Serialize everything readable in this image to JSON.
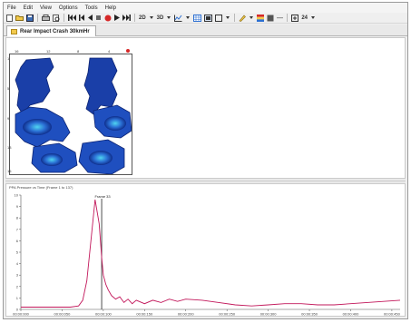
{
  "menu": {
    "items": [
      "File",
      "Edit",
      "View",
      "Options",
      "Tools",
      "Help"
    ]
  },
  "toolbar": {
    "speed_label": "2D",
    "view_label": "3D",
    "zoom_label": "24"
  },
  "tab": {
    "label": "Rear Impact Crash 30kmHr"
  },
  "heatmap": {
    "x_ticks": [
      "16",
      "12",
      "8",
      "4"
    ],
    "y_ticks": [
      "1",
      "5",
      "9",
      "13",
      "16"
    ]
  },
  "plot": {
    "title": "PPA Pressure vs Time (Frame 1 to 137)",
    "annotation": "Frame 33",
    "y_ticks": [
      "10",
      "9",
      "8",
      "7",
      "6",
      "5",
      "4",
      "3",
      "2",
      "1",
      "0"
    ],
    "x_ticks": [
      "00:00:000",
      "00:00:050",
      "00:00:100",
      "00:00:150",
      "00:00:200",
      "00:00:250",
      "00:00:300",
      "00:00:350",
      "00:00:400",
      "00:00:450"
    ]
  },
  "chart_data": {
    "type": "line",
    "title": "PPA Pressure vs Time (Frame 1 to 137)",
    "xlabel": "",
    "ylabel": "",
    "x": [
      0,
      20,
      40,
      60,
      70,
      75,
      80,
      85,
      90,
      95,
      98,
      100,
      103,
      106,
      110,
      115,
      120,
      125,
      130,
      135,
      140,
      150,
      160,
      170,
      180,
      190,
      200,
      220,
      240,
      260,
      280,
      300,
      320,
      340,
      360,
      380,
      400,
      420,
      440,
      460
    ],
    "values": [
      0.2,
      0.2,
      0.2,
      0.2,
      0.3,
      0.8,
      2.5,
      6.0,
      9.6,
      7.5,
      4.5,
      3.0,
      2.2,
      1.7,
      1.2,
      0.9,
      1.1,
      0.6,
      0.9,
      0.5,
      0.8,
      0.5,
      0.8,
      0.6,
      0.9,
      0.7,
      0.9,
      0.8,
      0.6,
      0.4,
      0.3,
      0.4,
      0.5,
      0.5,
      0.4,
      0.4,
      0.5,
      0.6,
      0.7,
      0.8
    ],
    "ylim": [
      0,
      10
    ],
    "xlim": [
      0,
      460
    ],
    "series_color": "#c2185b",
    "marker_x": 98
  }
}
